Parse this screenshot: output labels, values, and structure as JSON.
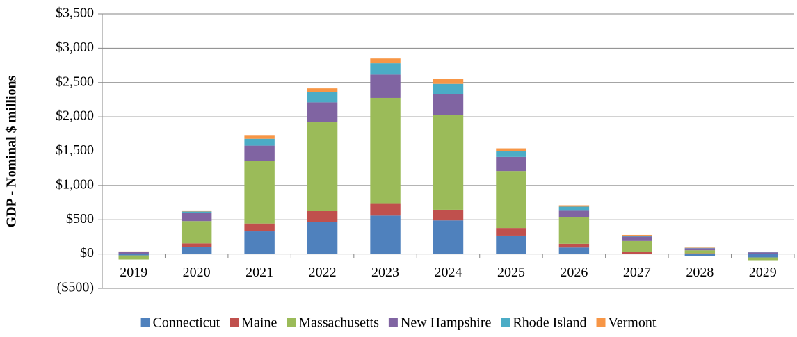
{
  "chart_data": {
    "type": "stacked_bar",
    "y_label": "GDP - Nominal $ millions",
    "categories": [
      "2019",
      "2020",
      "2021",
      "2022",
      "2023",
      "2024",
      "2025",
      "2026",
      "2027",
      "2028",
      "2029"
    ],
    "series": [
      {
        "name": "Connecticut",
        "color": "#4f81bd",
        "values": [
          -20,
          100,
          330,
          470,
          560,
          490,
          270,
          95,
          5,
          -30,
          -50
        ]
      },
      {
        "name": "Maine",
        "color": "#c0504d",
        "values": [
          5,
          55,
          115,
          155,
          180,
          155,
          110,
          55,
          25,
          10,
          5
        ]
      },
      {
        "name": "Massachusetts",
        "color": "#9bbb59",
        "values": [
          -60,
          325,
          910,
          1295,
          1535,
          1385,
          830,
          385,
          160,
          45,
          -40
        ]
      },
      {
        "name": "New Hampshire",
        "color": "#8064a2",
        "values": [
          25,
          115,
          225,
          290,
          340,
          305,
          205,
          105,
          65,
          30,
          20
        ]
      },
      {
        "name": "Rhode Island",
        "color": "#4bacc6",
        "values": [
          5,
          25,
          100,
          150,
          165,
          145,
          85,
          50,
          15,
          5,
          5
        ]
      },
      {
        "name": "Vermont",
        "color": "#f79646",
        "values": [
          3,
          15,
          45,
          55,
          70,
          70,
          40,
          20,
          10,
          5,
          3
        ]
      }
    ],
    "ylim": [
      -500,
      3500
    ],
    "yticks": [
      {
        "value": -500,
        "label": "($500)"
      },
      {
        "value": 0,
        "label": "$0"
      },
      {
        "value": 500,
        "label": "$500"
      },
      {
        "value": 1000,
        "label": "$1,000"
      },
      {
        "value": 1500,
        "label": "$1,500"
      },
      {
        "value": 2000,
        "label": "$2,000"
      },
      {
        "value": 2500,
        "label": "$2,500"
      },
      {
        "value": 3000,
        "label": "$3,000"
      },
      {
        "value": 3500,
        "label": "$3,500"
      }
    ],
    "grid": true,
    "legend": "bottom"
  }
}
